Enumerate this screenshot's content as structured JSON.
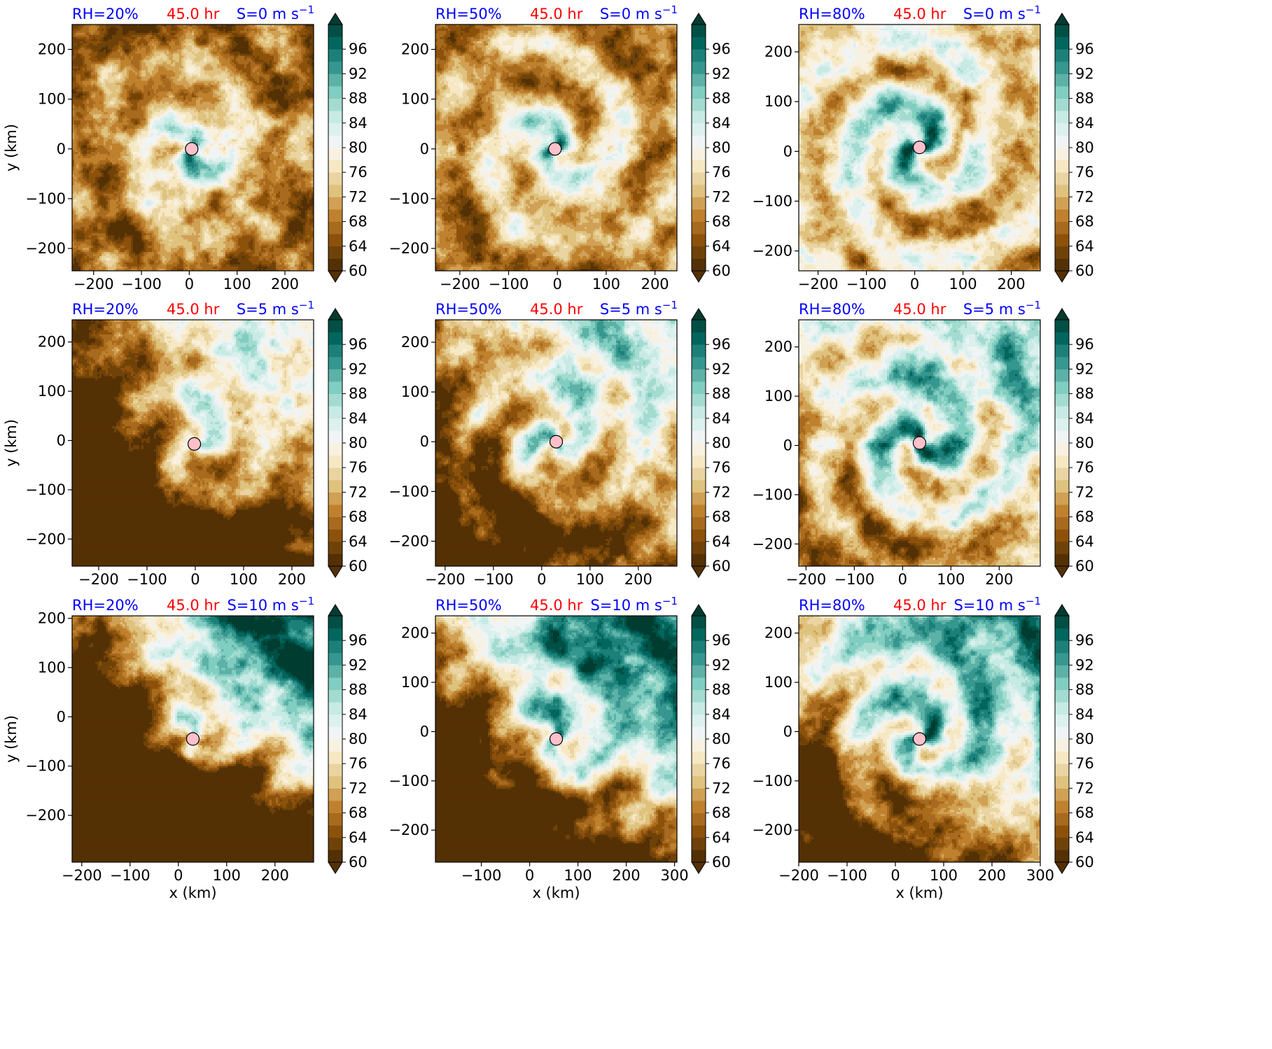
{
  "figure": {
    "time_label": "45.0 hr",
    "x_axis_label": "x (km)",
    "y_axis_label": "y (km)",
    "colors": {
      "rh_label": "#0000ff",
      "time_label": "#ff0000",
      "shear_label": "#0000ff",
      "center_marker": "#ffc0cb"
    }
  },
  "chart_data": [
    {
      "type": "heatmap",
      "panel": "rh20-s0",
      "rh_label": "RH=20%",
      "time_label": "45.0 hr",
      "shear_label": "S=0 m s",
      "shear_exponent": "−1",
      "ylabel": "y (km)",
      "xlabel": "",
      "xlim": [
        -245,
        260
      ],
      "ylim": [
        -245,
        250
      ],
      "xticks": [
        -200,
        -100,
        0,
        100,
        200
      ],
      "yticks": [
        -200,
        -100,
        0,
        100,
        200
      ],
      "xtick_labels": [
        "−200",
        "−100",
        "0",
        "100",
        "200"
      ],
      "ytick_labels": [
        "−200",
        "−100",
        "0",
        "100",
        "200"
      ],
      "center": [
        5,
        0
      ]
    },
    {
      "type": "heatmap",
      "panel": "rh50-s0",
      "rh_label": "RH=50%",
      "time_label": "45.0 hr",
      "shear_label": "S=0 m s",
      "shear_exponent": "−1",
      "ylabel": "",
      "xlabel": "",
      "xlim": [
        -250,
        245
      ],
      "ylim": [
        -245,
        250
      ],
      "xticks": [
        -200,
        -100,
        0,
        100,
        200
      ],
      "yticks": [
        -200,
        -100,
        0,
        100,
        200
      ],
      "xtick_labels": [
        "−200",
        "−100",
        "0",
        "100",
        "200"
      ],
      "ytick_labels": [
        "−200",
        "−100",
        "0",
        "100",
        "200"
      ],
      "center": [
        -5,
        0
      ]
    },
    {
      "type": "heatmap",
      "panel": "rh80-s0",
      "rh_label": "RH=80%",
      "time_label": "45.0 hr",
      "shear_label": "S=0 m s",
      "shear_exponent": "−1",
      "ylabel": "",
      "xlabel": "",
      "xlim": [
        -240,
        260
      ],
      "ylim": [
        -240,
        255
      ],
      "xticks": [
        -200,
        -100,
        0,
        100,
        200
      ],
      "yticks": [
        -200,
        -100,
        0,
        100,
        200
      ],
      "xtick_labels": [
        "−200",
        "−100",
        "0",
        "100",
        "200"
      ],
      "ytick_labels": [
        "−200",
        "−100",
        "0",
        "100",
        "200"
      ],
      "center": [
        10,
        8
      ]
    },
    {
      "type": "heatmap",
      "panel": "rh20-s5",
      "rh_label": "RH=20%",
      "time_label": "45.0 hr",
      "shear_label": "S=5 m s",
      "shear_exponent": "−1",
      "ylabel": "y (km)",
      "xlabel": "",
      "xlim": [
        -255,
        245
      ],
      "ylim": [
        -255,
        245
      ],
      "xticks": [
        -200,
        -100,
        0,
        100,
        200
      ],
      "yticks": [
        -200,
        -100,
        0,
        100,
        200
      ],
      "xtick_labels": [
        "−200",
        "−100",
        "0",
        "100",
        "200"
      ],
      "ytick_labels": [
        "−200",
        "−100",
        "0",
        "100",
        "200"
      ],
      "center": [
        -2,
        -7
      ]
    },
    {
      "type": "heatmap",
      "panel": "rh50-s5",
      "rh_label": "RH=50%",
      "time_label": "45.0 hr",
      "shear_label": "S=5 m s",
      "shear_exponent": "−1",
      "ylabel": "",
      "xlabel": "",
      "xlim": [
        -220,
        280
      ],
      "ylim": [
        -250,
        245
      ],
      "xticks": [
        -200,
        -100,
        0,
        100,
        200
      ],
      "yticks": [
        -200,
        -100,
        0,
        100,
        200
      ],
      "xtick_labels": [
        "−200",
        "−100",
        "0",
        "100",
        "200"
      ],
      "ytick_labels": [
        "−200",
        "−100",
        "0",
        "100",
        "200"
      ],
      "center": [
        30,
        0
      ]
    },
    {
      "type": "heatmap",
      "panel": "rh80-s5",
      "rh_label": "RH=80%",
      "time_label": "45.0 hr",
      "shear_label": "S=5 m s",
      "shear_exponent": "−1",
      "ylabel": "",
      "xlabel": "",
      "xlim": [
        -215,
        285
      ],
      "ylim": [
        -245,
        255
      ],
      "xticks": [
        -200,
        -100,
        0,
        100,
        200
      ],
      "yticks": [
        -200,
        -100,
        0,
        100,
        200
      ],
      "xtick_labels": [
        "−200",
        "−100",
        "0",
        "100",
        "200"
      ],
      "ytick_labels": [
        "−200",
        "−100",
        "0",
        "100",
        "200"
      ],
      "center": [
        35,
        5
      ]
    },
    {
      "type": "heatmap",
      "panel": "rh20-s10",
      "rh_label": "RH=20%",
      "time_label": "45.0 hr",
      "shear_label": "S=10 m s",
      "shear_exponent": "−1",
      "ylabel": "y (km)",
      "xlabel": "x (km)",
      "xlim": [
        -220,
        280
      ],
      "ylim": [
        -295,
        205
      ],
      "xticks": [
        -200,
        -100,
        0,
        100,
        200
      ],
      "yticks": [
        -200,
        -100,
        0,
        100,
        200
      ],
      "xtick_labels": [
        "−200",
        "−100",
        "0",
        "100",
        "200"
      ],
      "ytick_labels": [
        "−200",
        "−100",
        "0",
        "100",
        "200"
      ],
      "center": [
        30,
        -45
      ]
    },
    {
      "type": "heatmap",
      "panel": "rh50-s10",
      "rh_label": "RH=50%",
      "time_label": "45.0 hr",
      "shear_label": "S=10 m s",
      "shear_exponent": "−1",
      "ylabel": "",
      "xlabel": "x (km)",
      "xlim": [
        -195,
        305
      ],
      "ylim": [
        -265,
        235
      ],
      "xticks": [
        -100,
        0,
        100,
        200,
        300
      ],
      "yticks": [
        -200,
        -100,
        0,
        100,
        200
      ],
      "xtick_labels": [
        "−100",
        "0",
        "100",
        "200",
        "300"
      ],
      "ytick_labels": [
        "−200",
        "−100",
        "0",
        "100",
        "200"
      ],
      "center": [
        55,
        -15
      ]
    },
    {
      "type": "heatmap",
      "panel": "rh80-s10",
      "rh_label": "RH=80%",
      "time_label": "45.0 hr",
      "shear_label": "S=10 m s",
      "shear_exponent": "−1",
      "ylabel": "",
      "xlabel": "x (km)",
      "xlim": [
        -200,
        300
      ],
      "ylim": [
        -265,
        235
      ],
      "xticks": [
        -200,
        -100,
        0,
        100,
        200,
        300
      ],
      "yticks": [
        -200,
        -100,
        0,
        100,
        200
      ],
      "xtick_labels": [
        "−200",
        "−100",
        "0",
        "100",
        "200",
        "300"
      ],
      "ytick_labels": [
        "−200",
        "−100",
        "0",
        "100",
        "200"
      ],
      "center": [
        50,
        -15
      ]
    }
  ],
  "colorbar": {
    "ticks": [
      60,
      64,
      68,
      72,
      76,
      80,
      84,
      88,
      92,
      96
    ],
    "tick_labels": [
      "60",
      "64",
      "68",
      "72",
      "76",
      "80",
      "84",
      "88",
      "92",
      "96"
    ],
    "range": [
      60,
      100
    ],
    "levels": [
      60,
      62,
      64,
      66,
      68,
      70,
      72,
      74,
      76,
      78,
      80,
      82,
      84,
      86,
      88,
      90,
      92,
      94,
      96,
      98,
      100
    ],
    "colors": [
      "#543005",
      "#6f4209",
      "#8c510a",
      "#a76a1e",
      "#bf812d",
      "#d0a055",
      "#dfc27d",
      "#e9d4a2",
      "#f6e8c3",
      "#f8f1e1",
      "#f0f4f4",
      "#dcf1ee",
      "#c7eae5",
      "#a4dbd0",
      "#80cdc1",
      "#5db1a6",
      "#35978f",
      "#1d8078",
      "#01665e",
      "#014f45"
    ],
    "under_color": "#543005",
    "over_color": "#003c30"
  }
}
